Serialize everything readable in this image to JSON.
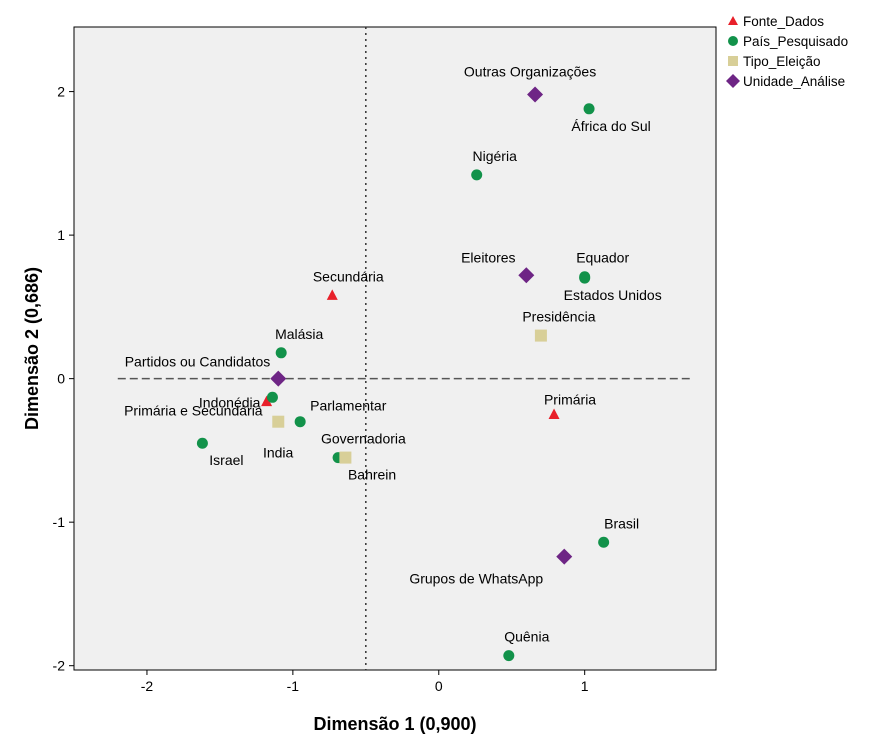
{
  "chart_data": {
    "type": "scatter",
    "xlabel": "Dimensão 1 (0,900)",
    "ylabel": "Dimensão 2 (0,686)",
    "xlim": [
      -2.5,
      1.9
    ],
    "ylim": [
      -2.03,
      2.45
    ],
    "x_ticks": [
      -2,
      -1,
      0,
      1
    ],
    "y_ticks": [
      -2,
      -1,
      0,
      1,
      2
    ],
    "reference_lines": {
      "vertical_x": -0.5,
      "horizontal_y": 0
    },
    "legend_position": "top-right, outside plot",
    "series": [
      {
        "name": "Fonte_Dados",
        "marker": "triangle",
        "color": "#e8202a",
        "points": [
          {
            "label": "Secundária",
            "x": -0.73,
            "y": 0.58
          },
          {
            "label": "Primária",
            "x": 0.79,
            "y": -0.25
          },
          {
            "label": "Primária e Secundária",
            "x": -1.18,
            "y": -0.16
          }
        ]
      },
      {
        "name": "País_Pesquisado",
        "marker": "circle",
        "color": "#12924a",
        "points": [
          {
            "label": "África do Sul",
            "x": 1.03,
            "y": 1.88
          },
          {
            "label": "Nigéria",
            "x": 0.26,
            "y": 1.42
          },
          {
            "label": "Equador",
            "x": 1.0,
            "y": 0.71
          },
          {
            "label": "Estados Unidos",
            "x": 1.0,
            "y": 0.7
          },
          {
            "label": "Malásia",
            "x": -1.08,
            "y": 0.18
          },
          {
            "label": "Indonédia",
            "x": -1.14,
            "y": -0.13
          },
          {
            "label": "Israel",
            "x": -1.62,
            "y": -0.45
          },
          {
            "label": "India",
            "x": -0.95,
            "y": -0.3
          },
          {
            "label": "Bahrein",
            "x": -0.69,
            "y": -0.55
          },
          {
            "label": "Brasil",
            "x": 1.13,
            "y": -1.14
          },
          {
            "label": "Quênia",
            "x": 0.48,
            "y": -1.93
          }
        ]
      },
      {
        "name": "Tipo_Eleição",
        "marker": "square",
        "color": "#d8cf98",
        "points": [
          {
            "label": "Presidência",
            "x": 0.7,
            "y": 0.3
          },
          {
            "label": "Parlamentar",
            "x": -1.1,
            "y": -0.3
          },
          {
            "label": "Governadoria",
            "x": -0.64,
            "y": -0.55
          }
        ]
      },
      {
        "name": "Unidade_Análise",
        "marker": "diamond",
        "color": "#6e2585",
        "points": [
          {
            "label": "Outras Organizações",
            "x": 0.66,
            "y": 1.98
          },
          {
            "label": "Eleitores",
            "x": 0.6,
            "y": 0.72
          },
          {
            "label": "Partidos ou Candidatos",
            "x": -1.1,
            "y": 0.0
          },
          {
            "label": "Grupos de WhatsApp",
            "x": 0.86,
            "y": -1.24
          }
        ]
      }
    ]
  }
}
